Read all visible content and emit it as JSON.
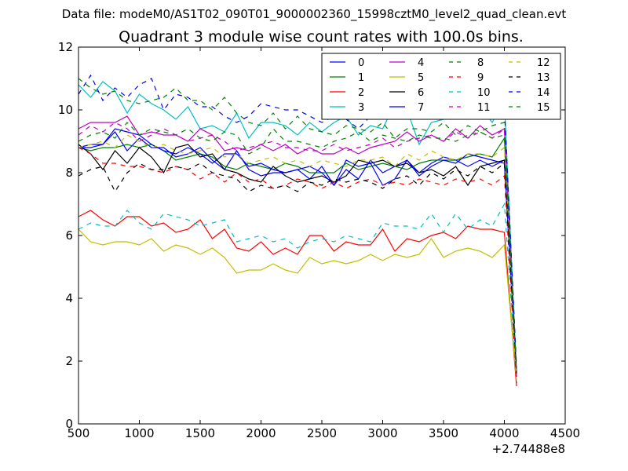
{
  "figure": {
    "suptitle": "Data file: modeM0/AS1T02_090T01_9000002360_15998cztM0_level2_quad_clean.evt",
    "title": "Quadrant 3 module wise count rates with 100.0s bins."
  },
  "chart_data": {
    "type": "line",
    "title": "Quadrant 3 module wise count rates with 100.0s bins.",
    "xlabel": "",
    "ylabel": "",
    "x_offset_label": "+2.74488e8",
    "xlim": [
      500,
      4500
    ],
    "ylim": [
      0,
      12
    ],
    "xticks": [
      500,
      1000,
      1500,
      2000,
      2500,
      3000,
      3500,
      4000,
      4500
    ],
    "yticks": [
      0,
      2,
      4,
      6,
      8,
      10,
      12
    ],
    "grid": false,
    "legend": {
      "location": "top-right",
      "columns": 4
    },
    "x": [
      500,
      600,
      700,
      800,
      900,
      1000,
      1100,
      1200,
      1300,
      1400,
      1500,
      1600,
      1700,
      1800,
      1900,
      2000,
      2100,
      2200,
      2300,
      2400,
      2500,
      2600,
      2700,
      2800,
      2900,
      3000,
      3100,
      3200,
      3300,
      3400,
      3500,
      3600,
      3700,
      3800,
      3900,
      4000,
      4100
    ],
    "series": [
      {
        "name": "0",
        "color": "#0000ff",
        "dash": "solid",
        "values": [
          8.8,
          8.9,
          8.9,
          9.3,
          8.7,
          9.1,
          8.8,
          8.8,
          8.5,
          8.6,
          8.8,
          8.4,
          8.1,
          8.7,
          8.1,
          7.9,
          8.0,
          8.0,
          8.1,
          7.8,
          8.2,
          7.6,
          8.4,
          8.2,
          8.3,
          7.6,
          7.8,
          8.4,
          8.0,
          8.3,
          8.5,
          8.4,
          8.2,
          8.4,
          8.2,
          8.4,
          1.6
        ]
      },
      {
        "name": "1",
        "color": "#008000",
        "dash": "solid",
        "values": [
          8.8,
          8.7,
          8.8,
          8.8,
          8.9,
          8.8,
          8.9,
          8.7,
          8.4,
          8.5,
          8.6,
          8.5,
          8.2,
          8.1,
          8.3,
          8.2,
          8.1,
          8.3,
          8.2,
          8.0,
          8.0,
          8.0,
          8.3,
          8.1,
          8.2,
          8.3,
          8.2,
          8.1,
          8.3,
          8.4,
          8.4,
          8.4,
          8.5,
          8.6,
          8.5,
          9.1,
          1.6
        ]
      },
      {
        "name": "2",
        "color": "#ff0000",
        "dash": "solid",
        "values": [
          6.6,
          6.8,
          6.5,
          6.3,
          6.6,
          6.6,
          6.3,
          6.4,
          6.1,
          6.2,
          6.5,
          5.9,
          6.2,
          5.6,
          5.5,
          5.8,
          5.4,
          5.6,
          5.4,
          6.0,
          6.0,
          5.5,
          5.8,
          5.7,
          5.7,
          6.2,
          5.5,
          5.9,
          5.8,
          6.0,
          6.1,
          5.9,
          6.3,
          6.2,
          6.2,
          6.1,
          1.2
        ]
      },
      {
        "name": "3",
        "color": "#00bfbf",
        "dash": "solid",
        "values": [
          10.8,
          10.4,
          10.9,
          10.6,
          9.9,
          10.5,
          10.2,
          10.0,
          9.7,
          10.1,
          9.4,
          9.5,
          9.3,
          9.9,
          9.1,
          9.6,
          9.6,
          9.5,
          9.2,
          9.6,
          9.3,
          9.6,
          9.8,
          9.2,
          9.5,
          9.4,
          10.2,
          10.0,
          8.9,
          9.6,
          9.7,
          9.8,
          10.4,
          10.1,
          9.6,
          10.3,
          1.6
        ]
      },
      {
        "name": "4",
        "color": "#bf00bf",
        "dash": "solid",
        "values": [
          9.4,
          9.6,
          9.6,
          9.6,
          9.8,
          9.2,
          9.3,
          9.2,
          9.2,
          9.0,
          9.4,
          9.2,
          8.7,
          8.8,
          8.7,
          8.9,
          8.7,
          8.9,
          8.6,
          8.8,
          8.6,
          8.6,
          8.8,
          8.6,
          8.8,
          8.9,
          9.0,
          9.3,
          9.0,
          9.2,
          9.0,
          9.4,
          9.1,
          9.5,
          9.2,
          9.4,
          1.5
        ]
      },
      {
        "name": "5",
        "color": "#bfbf00",
        "dash": "solid",
        "values": [
          6.2,
          5.8,
          5.7,
          5.8,
          5.8,
          5.7,
          5.9,
          5.5,
          5.7,
          5.6,
          5.4,
          5.6,
          5.3,
          4.8,
          4.9,
          4.9,
          5.1,
          4.9,
          4.8,
          5.3,
          5.1,
          5.2,
          5.1,
          5.2,
          5.4,
          5.2,
          5.4,
          5.3,
          5.4,
          5.9,
          5.3,
          5.5,
          5.6,
          5.5,
          5.3,
          5.7,
          1.4
        ]
      },
      {
        "name": "6",
        "color": "#000000",
        "dash": "solid",
        "values": [
          8.9,
          8.6,
          8.1,
          8.7,
          8.3,
          8.8,
          8.5,
          8.0,
          8.8,
          8.9,
          8.5,
          8.6,
          8.1,
          8.0,
          7.8,
          7.7,
          8.2,
          7.9,
          7.7,
          7.8,
          7.9,
          7.7,
          7.9,
          8.4,
          8.3,
          8.4,
          8.2,
          8.3,
          8.0,
          8.1,
          7.9,
          8.2,
          7.6,
          8.2,
          8.3,
          8.4,
          1.6
        ]
      },
      {
        "name": "7",
        "color": "#0000ff",
        "dash": "solid",
        "values": [
          8.8,
          8.8,
          8.9,
          9.4,
          9.3,
          9.2,
          8.9,
          8.7,
          8.6,
          8.8,
          8.6,
          8.3,
          8.6,
          8.6,
          8.2,
          8.3,
          8.1,
          8.0,
          8.1,
          8.2,
          8.0,
          7.6,
          8.1,
          7.8,
          8.4,
          8.0,
          8.2,
          8.4,
          7.9,
          8.2,
          8.4,
          8.3,
          8.6,
          8.5,
          8.4,
          8.3,
          1.6
        ]
      },
      {
        "name": "8",
        "color": "#008000",
        "dash": "dashed",
        "values": [
          11.0,
          10.7,
          10.5,
          10.6,
          10.3,
          10.2,
          10.3,
          10.4,
          10.7,
          10.3,
          10.3,
          10.0,
          10.4,
          9.9,
          9.6,
          9.5,
          9.9,
          9.4,
          9.8,
          9.4,
          9.3,
          9.2,
          9.5,
          9.4,
          9.3,
          9.6,
          9.1,
          9.4,
          9.4,
          9.3,
          9.6,
          9.2,
          9.5,
          9.3,
          9.5,
          9.6,
          1.7
        ]
      },
      {
        "name": "9",
        "color": "#ff0000",
        "dash": "dashed",
        "values": [
          8.8,
          8.6,
          8.3,
          8.3,
          8.2,
          8.2,
          8.1,
          8.0,
          8.2,
          8.1,
          7.8,
          8.0,
          7.7,
          8.0,
          7.7,
          7.8,
          7.5,
          7.6,
          7.8,
          7.7,
          7.5,
          7.7,
          7.5,
          7.7,
          7.8,
          7.6,
          7.7,
          7.6,
          7.8,
          7.7,
          7.6,
          7.8,
          7.7,
          7.8,
          7.6,
          7.9,
          1.3
        ]
      },
      {
        "name": "10",
        "color": "#00bfbf",
        "dash": "dashed",
        "values": [
          6.2,
          6.4,
          6.3,
          6.3,
          6.8,
          6.4,
          6.2,
          6.7,
          6.6,
          6.5,
          6.3,
          6.4,
          6.5,
          5.8,
          5.9,
          6.0,
          5.8,
          5.9,
          5.6,
          5.8,
          5.9,
          5.8,
          6.0,
          5.9,
          5.8,
          6.4,
          6.3,
          6.3,
          6.2,
          6.7,
          6.1,
          6.7,
          6.2,
          6.5,
          6.3,
          7.0,
          1.5
        ]
      },
      {
        "name": "11",
        "color": "#bf00bf",
        "dash": "dashed",
        "values": [
          9.2,
          9.5,
          9.3,
          9.6,
          9.4,
          9.0,
          9.2,
          9.4,
          9.2,
          9.0,
          9.1,
          9.2,
          9.0,
          8.7,
          8.8,
          8.9,
          9.0,
          8.8,
          8.8,
          8.7,
          8.7,
          8.9,
          8.7,
          8.8,
          8.9,
          9.1,
          8.8,
          9.0,
          9.1,
          9.2,
          9.0,
          9.3,
          9.1,
          9.3,
          9.1,
          9.4,
          1.5
        ]
      },
      {
        "name": "12",
        "color": "#bfbf00",
        "dash": "dashed",
        "values": [
          8.8,
          8.9,
          9.0,
          8.8,
          9.2,
          9.0,
          8.8,
          8.9,
          8.7,
          8.6,
          8.7,
          8.8,
          8.5,
          8.6,
          8.3,
          8.4,
          8.5,
          8.3,
          8.4,
          8.2,
          8.4,
          8.3,
          8.2,
          8.4,
          8.4,
          8.5,
          8.2,
          8.6,
          8.4,
          8.7,
          8.5,
          8.4,
          8.6,
          8.6,
          8.5,
          8.8,
          1.4
        ]
      },
      {
        "name": "13",
        "color": "#000000",
        "dash": "dashed",
        "values": [
          7.9,
          8.1,
          8.2,
          7.4,
          8.0,
          8.3,
          8.1,
          8.1,
          8.2,
          8.1,
          8.3,
          8.0,
          7.9,
          7.8,
          7.4,
          7.6,
          7.5,
          7.6,
          7.4,
          7.7,
          7.6,
          7.8,
          7.7,
          7.8,
          7.7,
          7.5,
          7.8,
          7.9,
          7.6,
          8.0,
          7.8,
          8.1,
          7.9,
          8.2,
          8.0,
          8.3,
          1.6
        ]
      },
      {
        "name": "14",
        "color": "#0000ff",
        "dash": "dashed",
        "values": [
          10.5,
          11.1,
          10.3,
          10.7,
          10.4,
          10.8,
          11.0,
          10.0,
          10.5,
          10.4,
          10.1,
          10.1,
          9.8,
          9.6,
          9.8,
          10.2,
          10.1,
          10.0,
          10.0,
          9.8,
          9.6,
          9.8,
          9.7,
          9.4,
          9.8,
          10.1,
          9.9,
          9.8,
          10.0,
          10.1,
          9.9,
          10.2,
          10.0,
          10.0,
          9.9,
          10.1,
          1.8
        ]
      },
      {
        "name": "15",
        "color": "#008000",
        "dash": "dashed",
        "values": [
          9.0,
          9.2,
          9.3,
          9.1,
          9.6,
          9.2,
          9.4,
          9.3,
          9.2,
          9.4,
          9.1,
          9.0,
          9.3,
          9.2,
          8.6,
          8.8,
          9.4,
          9.0,
          9.0,
          8.9,
          8.8,
          9.0,
          9.1,
          9.3,
          9.0,
          9.2,
          9.1,
          9.0,
          9.2,
          9.1,
          9.1,
          9.0,
          9.2,
          9.3,
          9.1,
          9.2,
          1.6
        ]
      }
    ]
  }
}
